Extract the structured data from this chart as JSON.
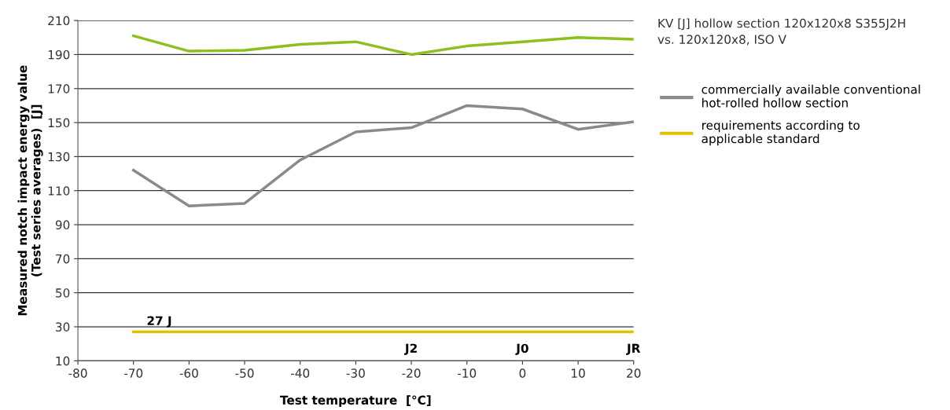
{
  "chart_data": {
    "type": "line",
    "title": "KV [J] hollow section 120x120x8 S355J2H\nvs. 120x120x8, ISO V",
    "xlabel": "Test temperature  [°C]",
    "ylabel": "Measured notch impact energy value\n(Test series averages)  [J]",
    "x": [
      -70,
      -60,
      -50,
      -40,
      -30,
      -20,
      -10,
      0,
      10,
      20
    ],
    "series": [
      {
        "color": "#8dbf1f",
        "values": [
          201,
          192,
          192.5,
          196,
          197.5,
          190,
          195,
          197.5,
          200,
          199
        ]
      },
      {
        "name": "commercially available conventional\nhot-rolled hollow section",
        "color": "#8a8a8a",
        "values": [
          122,
          101,
          102.5,
          128,
          144.5,
          147,
          160,
          158,
          146,
          150.5
        ]
      },
      {
        "name": "requirements according to\napplicable standard",
        "color": "#e2c000",
        "values": [
          27,
          27,
          27,
          27,
          27,
          27,
          27,
          27,
          27,
          27
        ]
      }
    ],
    "annotations": [
      {
        "text": "27 J",
        "x": -70,
        "y": 27
      },
      {
        "text": "J2",
        "x": -20,
        "y": 27
      },
      {
        "text": "J0",
        "x": 0,
        "y": 27
      },
      {
        "text": "JR",
        "x": 20,
        "y": 27
      }
    ],
    "xlim": [
      -80,
      20
    ],
    "xticks": [
      -80,
      -70,
      -60,
      -50,
      -40,
      -30,
      -20,
      -10,
      0,
      10,
      20
    ],
    "ylim": [
      10,
      210
    ],
    "yticks": [
      10,
      30,
      50,
      70,
      90,
      110,
      130,
      150,
      170,
      190,
      210
    ],
    "grid": "y",
    "legend": "right",
    "marker": "none",
    "line_style": "solid"
  }
}
